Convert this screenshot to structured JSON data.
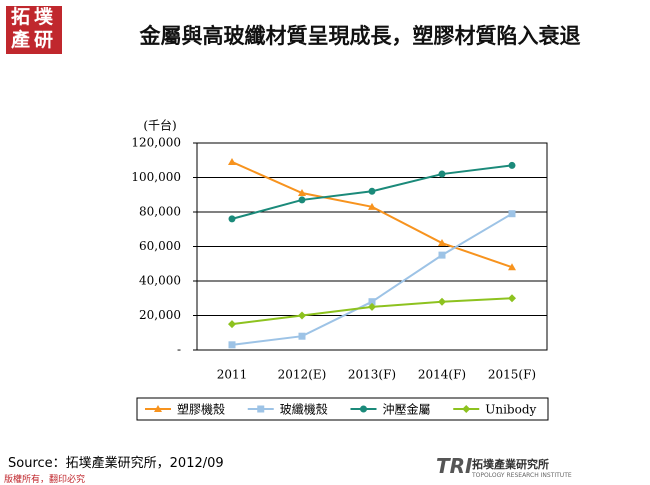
{
  "header": {
    "logo": "拓墣產研",
    "title": "金屬與高玻纖材質呈現成長，塑膠材質陷入衰退"
  },
  "chart_data": {
    "type": "line",
    "y_label": "(千台)",
    "categories": [
      "2011",
      "2012(E)",
      "2013(F)",
      "2014(F)",
      "2015(F)"
    ],
    "series": [
      {
        "name": "塑膠機殼",
        "color": "#f7931e",
        "marker": "triangle",
        "values": [
          109000,
          91000,
          83000,
          62000,
          48000
        ]
      },
      {
        "name": "玻纖機殼",
        "color": "#9dc3e6",
        "marker": "square",
        "values": [
          3000,
          8000,
          28000,
          55000,
          79000
        ]
      },
      {
        "name": "沖壓金屬",
        "color": "#1b8a7a",
        "marker": "circle",
        "values": [
          76000,
          87000,
          92000,
          102000,
          107000
        ]
      },
      {
        "name": "Unibody",
        "color": "#8dc21f",
        "marker": "diamond",
        "values": [
          15000,
          20000,
          25000,
          28000,
          30000
        ]
      }
    ],
    "ylim": [
      0,
      120000
    ],
    "yticks": [
      {
        "value": 0,
        "label": "-"
      },
      {
        "value": 20000,
        "label": "20,000"
      },
      {
        "value": 40000,
        "label": "40,000"
      },
      {
        "value": 60000,
        "label": "60,000"
      },
      {
        "value": 80000,
        "label": "80,000"
      },
      {
        "value": 100000,
        "label": "100,000"
      },
      {
        "value": 120000,
        "label": "120,000"
      }
    ],
    "grid": true,
    "legend": "bottom"
  },
  "source": "Source：拓墣產業研究所，2012/09",
  "footer": {
    "copyright": "版權所有，翻印必究",
    "brand_mark": "TRI",
    "brand_name": "拓墣產業研究所",
    "brand_en": "TOPOLOGY RESEARCH INSTITUTE"
  }
}
